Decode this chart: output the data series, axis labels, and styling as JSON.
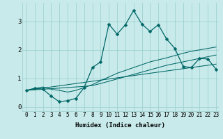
{
  "xlabel": "Humidex (Indice chaleur)",
  "background_color": "#c8eaea",
  "grid_color": "#96cccc",
  "line_color": "#006666",
  "xlim": [
    -0.5,
    23.3
  ],
  "ylim": [
    -0.15,
    3.65
  ],
  "x_ticks": [
    0,
    1,
    2,
    3,
    4,
    5,
    6,
    7,
    8,
    9,
    10,
    11,
    12,
    13,
    14,
    15,
    16,
    17,
    18,
    19,
    20,
    21,
    22,
    23
  ],
  "y_ticks": [
    0,
    1,
    2,
    3
  ],
  "line_main_x": [
    0,
    1,
    2,
    3,
    4,
    5,
    6,
    7,
    8,
    9,
    10,
    11,
    12,
    13,
    14,
    15,
    16,
    17,
    18,
    19,
    20,
    21,
    22,
    23
  ],
  "line_main_y": [
    0.58,
    0.65,
    0.62,
    0.38,
    0.18,
    0.22,
    0.3,
    0.68,
    1.38,
    1.58,
    2.9,
    2.55,
    2.88,
    3.38,
    2.9,
    2.65,
    2.88,
    2.38,
    2.05,
    1.42,
    1.38,
    1.7,
    1.68,
    1.32
  ],
  "line_a_x": [
    0,
    1,
    2,
    3,
    4,
    5,
    6,
    7,
    8,
    9,
    10,
    11,
    12,
    13,
    14,
    15,
    16,
    17,
    18,
    19,
    20,
    21,
    22,
    23
  ],
  "line_a_y": [
    0.58,
    0.65,
    0.7,
    0.62,
    0.58,
    0.52,
    0.58,
    0.68,
    0.78,
    0.92,
    1.05,
    1.18,
    1.28,
    1.38,
    1.48,
    1.58,
    1.65,
    1.72,
    1.8,
    1.88,
    1.95,
    2.0,
    2.05,
    2.1
  ],
  "line_b_x": [
    0,
    1,
    2,
    3,
    4,
    5,
    6,
    7,
    8,
    9,
    10,
    11,
    12,
    13,
    14,
    15,
    16,
    17,
    18,
    19,
    20,
    21,
    22,
    23
  ],
  "line_b_y": [
    0.58,
    0.62,
    0.66,
    0.7,
    0.74,
    0.78,
    0.82,
    0.86,
    0.9,
    0.94,
    0.98,
    1.02,
    1.06,
    1.1,
    1.14,
    1.18,
    1.22,
    1.26,
    1.3,
    1.34,
    1.38,
    1.42,
    1.46,
    1.5
  ],
  "line_c_x": [
    0,
    1,
    2,
    3,
    4,
    5,
    6,
    7,
    8,
    9,
    10,
    11,
    12,
    13,
    14,
    15,
    16,
    17,
    18,
    19,
    20,
    21,
    22,
    23
  ],
  "line_c_y": [
    0.58,
    0.6,
    0.62,
    0.64,
    0.66,
    0.68,
    0.7,
    0.72,
    0.75,
    0.82,
    0.9,
    0.98,
    1.06,
    1.14,
    1.22,
    1.3,
    1.38,
    1.46,
    1.52,
    1.58,
    1.64,
    1.7,
    1.76,
    1.82
  ],
  "markersize": 2.5,
  "linewidth_main": 0.9,
  "linewidth_trend": 0.75,
  "tick_fontsize": 5.5,
  "xlabel_fontsize": 6.5
}
